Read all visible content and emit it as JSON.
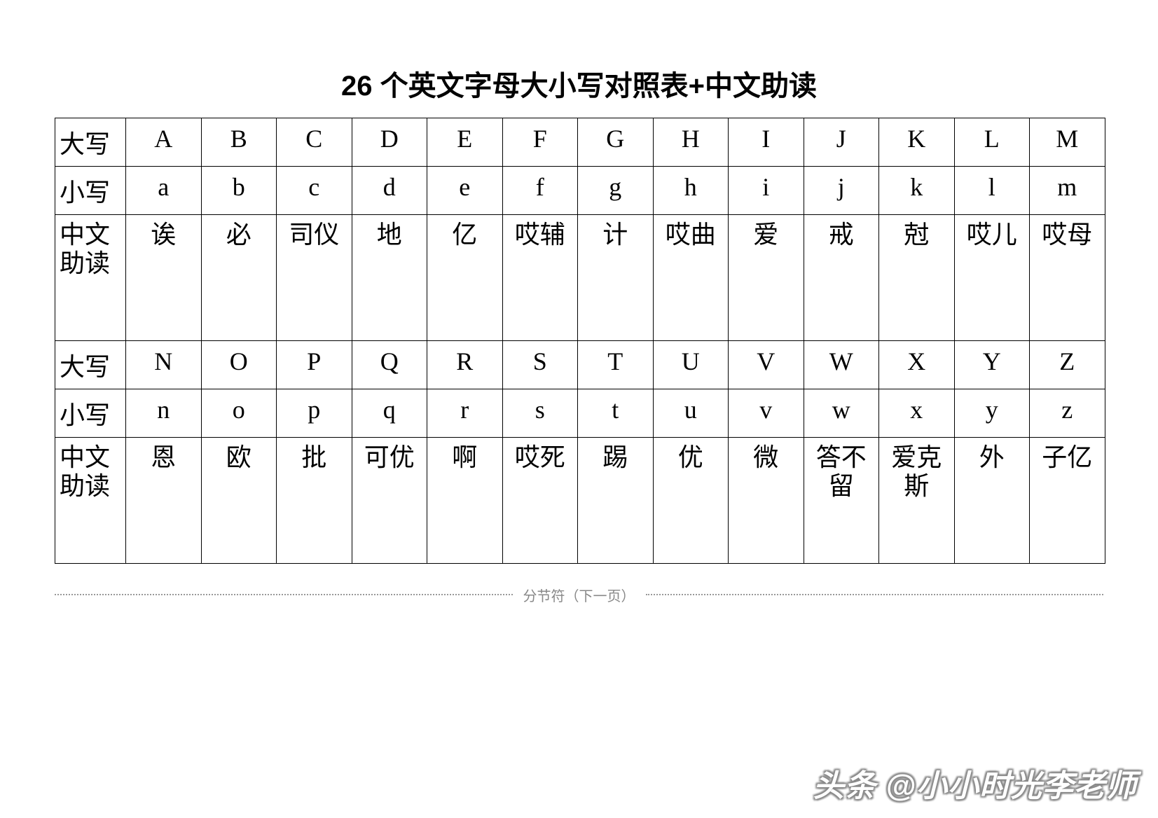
{
  "title": "26 个英文字母大小写对照表+中文助读",
  "labels": {
    "upper": "大写",
    "lower": "小写",
    "pinyin": "中文\n助读"
  },
  "groups": [
    {
      "upper": [
        "A",
        "B",
        "C",
        "D",
        "E",
        "F",
        "G",
        "H",
        "I",
        "J",
        "K",
        "L",
        "M"
      ],
      "lower": [
        "a",
        "b",
        "c",
        "d",
        "e",
        "f",
        "g",
        "h",
        "i",
        "j",
        "k",
        "l",
        "m"
      ],
      "pinyin": [
        "诶",
        "必",
        "司仪",
        "地",
        "亿",
        "哎辅",
        "计",
        "哎曲",
        "爱",
        "戒",
        "尅",
        "哎儿",
        "哎母"
      ]
    },
    {
      "upper": [
        "N",
        "O",
        "P",
        "Q",
        "R",
        "S",
        "T",
        "U",
        "V",
        "W",
        "X",
        "Y",
        "Z"
      ],
      "lower": [
        "n",
        "o",
        "p",
        "q",
        "r",
        "s",
        "t",
        "u",
        "v",
        "w",
        "x",
        "y",
        "z"
      ],
      "pinyin": [
        "恩",
        "欧",
        "批",
        "可优",
        "啊",
        "哎死",
        "踢",
        "优",
        "微",
        "答不\n留",
        "爱克\n斯",
        "外",
        "子亿"
      ]
    }
  ],
  "separator": "分节符（下一页）",
  "watermark": "头条 @小小时光李老师",
  "style": {
    "page_bg": "#ffffff",
    "border_color": "#000000",
    "text_color": "#000000",
    "sep_color": "#888888",
    "title_fontsize": 40,
    "cell_fontsize": 36,
    "columns_per_group": 13,
    "row_height_short": 68,
    "row_height_tall": 180
  }
}
